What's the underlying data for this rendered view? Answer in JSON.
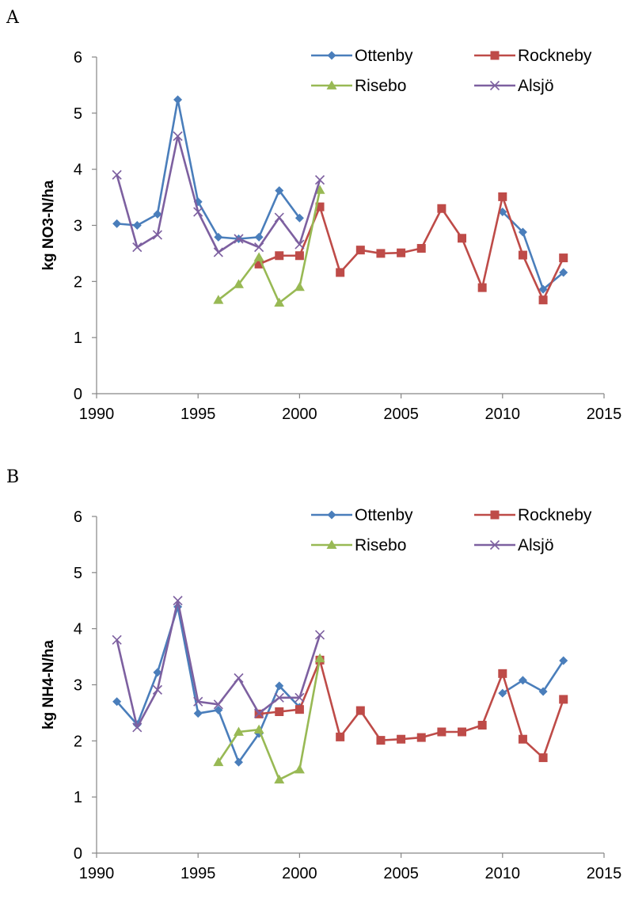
{
  "panels": [
    {
      "letter": "A"
    },
    {
      "letter": "B"
    }
  ],
  "chart_data": [
    {
      "type": "line",
      "title": "",
      "xlabel": "",
      "ylabel": "kg NO3-N/ha",
      "xlim": [
        1990,
        2015
      ],
      "ylim": [
        0,
        6
      ],
      "xticks": [
        1990,
        1995,
        2000,
        2005,
        2010,
        2015
      ],
      "yticks": [
        0,
        1,
        2,
        3,
        4,
        5,
        6
      ],
      "grid": false,
      "legend_position": "top-right",
      "series": [
        {
          "name": "Ottenby",
          "color": "#4a7ebb",
          "marker": "diamond",
          "x": [
            1991,
            1992,
            1993,
            1994,
            1995,
            1996,
            1997,
            1998,
            1999,
            2000,
            null,
            2010,
            2011,
            2012,
            2013
          ],
          "y": [
            3.03,
            3.0,
            3.2,
            5.24,
            3.42,
            2.79,
            2.76,
            2.79,
            3.62,
            3.13,
            null,
            3.24,
            2.88,
            1.86,
            2.16
          ]
        },
        {
          "name": "Rockneby",
          "color": "#be4b48",
          "marker": "square",
          "x": [
            1998,
            1999,
            2000,
            2001,
            2002,
            2003,
            2004,
            2005,
            2006,
            2007,
            2008,
            2009,
            2010,
            2011,
            2012,
            2013
          ],
          "y": [
            2.31,
            2.46,
            2.46,
            3.33,
            2.16,
            2.56,
            2.5,
            2.51,
            2.59,
            3.3,
            2.77,
            1.89,
            3.51,
            2.47,
            1.67,
            2.42
          ]
        },
        {
          "name": "Risebo",
          "color": "#98b954",
          "marker": "triangle",
          "x": [
            1996,
            1997,
            1998,
            1999,
            2000,
            2001
          ],
          "y": [
            1.67,
            1.95,
            2.43,
            1.62,
            1.9,
            3.63
          ]
        },
        {
          "name": "Alsjö",
          "color": "#7d60a0",
          "marker": "x",
          "x": [
            1991,
            1992,
            1993,
            1994,
            1995,
            1996,
            1997,
            1998,
            1999,
            2000,
            2001
          ],
          "y": [
            3.9,
            2.61,
            2.83,
            4.59,
            3.24,
            2.52,
            2.76,
            2.61,
            3.14,
            2.66,
            3.81
          ]
        }
      ]
    },
    {
      "type": "line",
      "title": "",
      "xlabel": "",
      "ylabel": "kg NH4-N/ha",
      "xlim": [
        1990,
        2015
      ],
      "ylim": [
        0,
        6
      ],
      "xticks": [
        1990,
        1995,
        2000,
        2005,
        2010,
        2015
      ],
      "yticks": [
        0,
        1,
        2,
        3,
        4,
        5,
        6
      ],
      "grid": false,
      "legend_position": "top-right",
      "series": [
        {
          "name": "Ottenby",
          "color": "#4a7ebb",
          "marker": "diamond",
          "x": [
            1991,
            1992,
            1993,
            1994,
            1995,
            1996,
            1997,
            1998,
            1999,
            2000,
            null,
            2010,
            2011,
            2012,
            2013
          ],
          "y": [
            2.7,
            2.29,
            3.22,
            4.39,
            2.49,
            2.55,
            1.62,
            2.13,
            2.98,
            2.6,
            null,
            2.85,
            3.08,
            2.88,
            3.43
          ]
        },
        {
          "name": "Rockneby",
          "color": "#be4b48",
          "marker": "square",
          "x": [
            1998,
            1999,
            2000,
            2001,
            2002,
            2003,
            2004,
            2005,
            2006,
            2007,
            2008,
            2009,
            2010,
            2011,
            2012,
            2013
          ],
          "y": [
            2.48,
            2.52,
            2.56,
            3.44,
            2.07,
            2.54,
            2.01,
            2.03,
            2.06,
            2.16,
            2.16,
            2.28,
            3.2,
            2.03,
            1.7,
            2.74
          ]
        },
        {
          "name": "Risebo",
          "color": "#98b954",
          "marker": "triangle",
          "x": [
            1996,
            1997,
            1998,
            1999,
            2000,
            2001
          ],
          "y": [
            1.62,
            2.16,
            2.2,
            1.31,
            1.49,
            3.47
          ]
        },
        {
          "name": "Alsjö",
          "color": "#7d60a0",
          "marker": "x",
          "x": [
            1991,
            1992,
            1993,
            1994,
            1995,
            1996,
            1997,
            1998,
            1999,
            2000,
            2001
          ],
          "y": [
            3.8,
            2.24,
            2.91,
            4.5,
            2.7,
            2.65,
            3.12,
            2.49,
            2.77,
            2.77,
            3.89
          ]
        }
      ]
    }
  ]
}
